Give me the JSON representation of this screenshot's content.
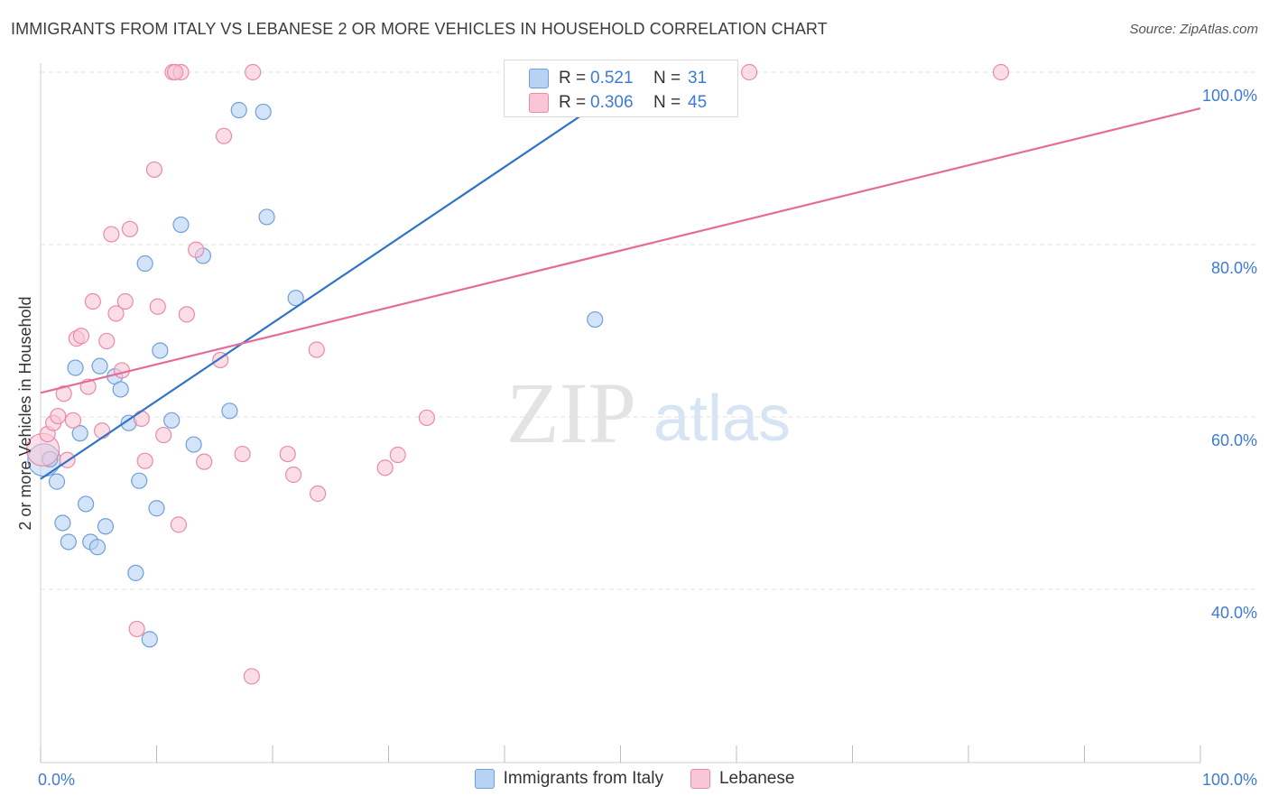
{
  "title": "IMMIGRANTS FROM ITALY VS LEBANESE 2 OR MORE VEHICLES IN HOUSEHOLD CORRELATION CHART",
  "source": "Source: ZipAtlas.com",
  "watermark": {
    "zip": "ZIP",
    "atlas": "atlas"
  },
  "colors": {
    "italy_fill": "#b8d2f3",
    "italy_stroke": "#6f9fd8",
    "italy_line": "#2f73c9",
    "lebanese_fill": "#f9c6d6",
    "lebanese_stroke": "#ea8aab",
    "lebanese_line": "#e46d97",
    "tick_label": "#3d7bd6",
    "grid": "#e2e2e2"
  },
  "stats": {
    "italy": {
      "r_label": "R =",
      "r_value": "0.521",
      "n_label": "N =",
      "n_value": "31"
    },
    "lebanese": {
      "r_label": "R =",
      "r_value": "0.306",
      "n_label": "N =",
      "n_value": "45"
    }
  },
  "legend": {
    "italy": "Immigrants from Italy",
    "lebanese": "Lebanese"
  },
  "chart_data": {
    "type": "scatter",
    "title": "IMMIGRANTS FROM ITALY VS LEBANESE 2 OR MORE VEHICLES IN HOUSEHOLD CORRELATION CHART",
    "xlabel": "",
    "ylabel": "2 or more Vehicles in Household",
    "xlim": [
      0,
      100
    ],
    "ylim": [
      20,
      102
    ],
    "x_tick_labels": [
      {
        "value": 0,
        "label": "0.0%"
      },
      {
        "value": 100,
        "label": "100.0%"
      }
    ],
    "y_tick_labels": [
      {
        "value": 40,
        "label": "40.0%"
      },
      {
        "value": 60,
        "label": "60.0%"
      },
      {
        "value": 80,
        "label": "80.0%"
      },
      {
        "value": 100,
        "label": "100.0%"
      }
    ],
    "grid": true,
    "legend_position": "bottom",
    "series": [
      {
        "name": "Immigrants from Italy",
        "trend": {
          "x": [
            0,
            50.5
          ],
          "y": [
            52.8,
            98.5
          ]
        },
        "points": [
          {
            "x": 0.3,
            "y": 55.0,
            "big": true
          },
          {
            "x": 1.4,
            "y": 52.5
          },
          {
            "x": 1.9,
            "y": 47.7
          },
          {
            "x": 2.4,
            "y": 45.5
          },
          {
            "x": 3.0,
            "y": 65.7
          },
          {
            "x": 3.4,
            "y": 58.1
          },
          {
            "x": 3.9,
            "y": 49.9
          },
          {
            "x": 4.3,
            "y": 45.5
          },
          {
            "x": 4.9,
            "y": 44.9
          },
          {
            "x": 5.6,
            "y": 47.3
          },
          {
            "x": 5.1,
            "y": 65.9
          },
          {
            "x": 6.4,
            "y": 64.7
          },
          {
            "x": 6.9,
            "y": 63.2
          },
          {
            "x": 7.6,
            "y": 59.3
          },
          {
            "x": 8.2,
            "y": 41.9
          },
          {
            "x": 8.5,
            "y": 52.6
          },
          {
            "x": 9.0,
            "y": 77.8
          },
          {
            "x": 9.4,
            "y": 34.2
          },
          {
            "x": 10.0,
            "y": 49.4
          },
          {
            "x": 10.3,
            "y": 67.7
          },
          {
            "x": 11.3,
            "y": 59.6
          },
          {
            "x": 12.1,
            "y": 82.3
          },
          {
            "x": 13.2,
            "y": 56.8
          },
          {
            "x": 14.0,
            "y": 78.7
          },
          {
            "x": 16.3,
            "y": 60.7
          },
          {
            "x": 17.1,
            "y": 95.6
          },
          {
            "x": 19.2,
            "y": 95.4
          },
          {
            "x": 19.5,
            "y": 83.2
          },
          {
            "x": 22.0,
            "y": 73.8
          },
          {
            "x": 47.8,
            "y": 71.3
          },
          {
            "x": 0.8,
            "y": 55.1
          }
        ]
      },
      {
        "name": "Lebanese",
        "trend": {
          "x": [
            0,
            100
          ],
          "y": [
            62.8,
            95.8
          ]
        },
        "points": [
          {
            "x": 0.2,
            "y": 56.2,
            "big": true
          },
          {
            "x": 0.6,
            "y": 58.0
          },
          {
            "x": 1.1,
            "y": 59.3
          },
          {
            "x": 1.5,
            "y": 60.1
          },
          {
            "x": 2.0,
            "y": 62.7
          },
          {
            "x": 2.3,
            "y": 55.0
          },
          {
            "x": 2.8,
            "y": 59.6
          },
          {
            "x": 3.1,
            "y": 69.1
          },
          {
            "x": 3.5,
            "y": 69.4
          },
          {
            "x": 4.1,
            "y": 63.5
          },
          {
            "x": 4.5,
            "y": 73.4
          },
          {
            "x": 5.3,
            "y": 58.4
          },
          {
            "x": 5.7,
            "y": 68.8
          },
          {
            "x": 6.1,
            "y": 81.2
          },
          {
            "x": 6.5,
            "y": 72.0
          },
          {
            "x": 7.0,
            "y": 65.4
          },
          {
            "x": 7.3,
            "y": 73.4
          },
          {
            "x": 7.7,
            "y": 81.8
          },
          {
            "x": 8.3,
            "y": 35.4
          },
          {
            "x": 8.7,
            "y": 59.8
          },
          {
            "x": 9.0,
            "y": 54.9
          },
          {
            "x": 9.8,
            "y": 88.7
          },
          {
            "x": 10.1,
            "y": 72.8
          },
          {
            "x": 10.6,
            "y": 57.9
          },
          {
            "x": 11.4,
            "y": 100.0
          },
          {
            "x": 11.9,
            "y": 47.5
          },
          {
            "x": 12.1,
            "y": 100.0
          },
          {
            "x": 12.6,
            "y": 71.9
          },
          {
            "x": 13.4,
            "y": 79.4
          },
          {
            "x": 14.1,
            "y": 54.8
          },
          {
            "x": 15.5,
            "y": 66.6
          },
          {
            "x": 15.8,
            "y": 92.6
          },
          {
            "x": 17.4,
            "y": 55.7
          },
          {
            "x": 18.2,
            "y": 29.9
          },
          {
            "x": 18.3,
            "y": 100.0
          },
          {
            "x": 21.3,
            "y": 55.7
          },
          {
            "x": 21.8,
            "y": 53.3
          },
          {
            "x": 23.8,
            "y": 67.8
          },
          {
            "x": 23.9,
            "y": 51.1
          },
          {
            "x": 29.7,
            "y": 54.1
          },
          {
            "x": 30.8,
            "y": 55.6
          },
          {
            "x": 33.3,
            "y": 59.9
          },
          {
            "x": 61.1,
            "y": 100.0
          },
          {
            "x": 82.8,
            "y": 100.0
          },
          {
            "x": 11.6,
            "y": 100.0
          }
        ]
      }
    ]
  }
}
